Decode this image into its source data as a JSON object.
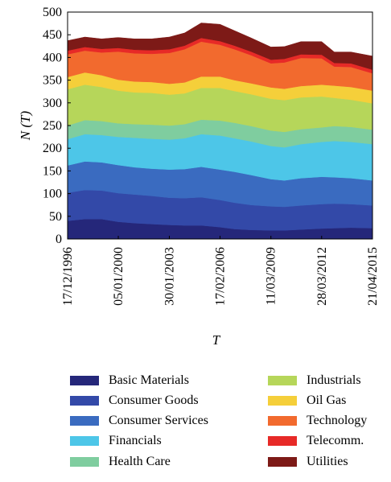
{
  "chart_data": {
    "type": "area",
    "stacked": true,
    "title": "",
    "xlabel": "T",
    "ylabel": "N (T)",
    "ylim": [
      0,
      500
    ],
    "yticks": [
      0,
      50,
      100,
      150,
      200,
      250,
      300,
      350,
      400,
      450,
      500
    ],
    "x": [
      "1996.96",
      "1998",
      "1999",
      "2000.0",
      "2001",
      "2002",
      "2003.08",
      "2004",
      "2005",
      "2006.13",
      "2007",
      "2008",
      "2009.19",
      "2010",
      "2011",
      "2012.24",
      "2013",
      "2014",
      "2015.3"
    ],
    "xtick_labels": [
      "17/12/1996",
      "05/01/2000",
      "30/01/2003",
      "17/02/2006",
      "11/03/2009",
      "28/03/2012",
      "21/04/2015"
    ],
    "xtick_positions": [
      1996.96,
      2000.01,
      2003.08,
      2006.13,
      2009.19,
      2012.24,
      2015.3
    ],
    "xlim": [
      1996.96,
      2015.3
    ],
    "legend_position": "bottom",
    "series": [
      {
        "name": "Basic Materials",
        "color": "#25277a",
        "values": [
          40,
          44,
          44,
          38,
          35,
          33,
          31,
          30,
          30,
          26,
          22,
          20,
          19,
          19,
          21,
          23,
          24,
          25,
          24
        ]
      },
      {
        "name": "Consumer Goods",
        "color": "#3349a8",
        "values": [
          62,
          64,
          63,
          63,
          63,
          62,
          60,
          60,
          62,
          60,
          58,
          55,
          53,
          52,
          53,
          54,
          54,
          52,
          50
        ]
      },
      {
        "name": "Consumer Services",
        "color": "#3a6bc0",
        "values": [
          60,
          63,
          62,
          62,
          60,
          60,
          62,
          64,
          67,
          67,
          68,
          66,
          60,
          58,
          60,
          60,
          58,
          57,
          55
        ]
      },
      {
        "name": "Financials",
        "color": "#4dc6e8",
        "values": [
          58,
          60,
          60,
          62,
          65,
          66,
          66,
          68,
          72,
          75,
          74,
          74,
          73,
          73,
          75,
          77,
          80,
          80,
          80
        ]
      },
      {
        "name": "Health Care",
        "color": "#7fcd9f",
        "values": [
          30,
          31,
          31,
          30,
          30,
          31,
          31,
          31,
          32,
          33,
          34,
          34,
          34,
          34,
          33,
          32,
          33,
          33,
          32
        ]
      },
      {
        "name": "Industrials",
        "color": "#b6d65a",
        "values": [
          80,
          78,
          75,
          72,
          70,
          70,
          68,
          68,
          70,
          72,
          70,
          70,
          70,
          70,
          70,
          68,
          62,
          60,
          58
        ]
      },
      {
        "name": "Oil Gas",
        "color": "#f5cf3a",
        "values": [
          27,
          27,
          26,
          24,
          24,
          24,
          24,
          24,
          25,
          25,
          24,
          24,
          25,
          25,
          25,
          26,
          27,
          28,
          28
        ]
      },
      {
        "name": "Technology",
        "color": "#f26a2e",
        "values": [
          50,
          48,
          50,
          62,
          62,
          62,
          68,
          73,
          77,
          70,
          68,
          62,
          53,
          58,
          62,
          58,
          42,
          44,
          38
        ]
      },
      {
        "name": "Telecomm.",
        "color": "#e72a27",
        "values": [
          8,
          8,
          8,
          8,
          8,
          8,
          8,
          8,
          8,
          8,
          8,
          8,
          8,
          8,
          8,
          8,
          8,
          8,
          8
        ]
      },
      {
        "name": "Utilities",
        "color": "#7d1a17",
        "values": [
          22,
          22,
          22,
          23,
          24,
          25,
          27,
          28,
          33,
          37,
          33,
          30,
          28,
          27,
          28,
          29,
          24,
          25,
          30
        ]
      }
    ]
  }
}
